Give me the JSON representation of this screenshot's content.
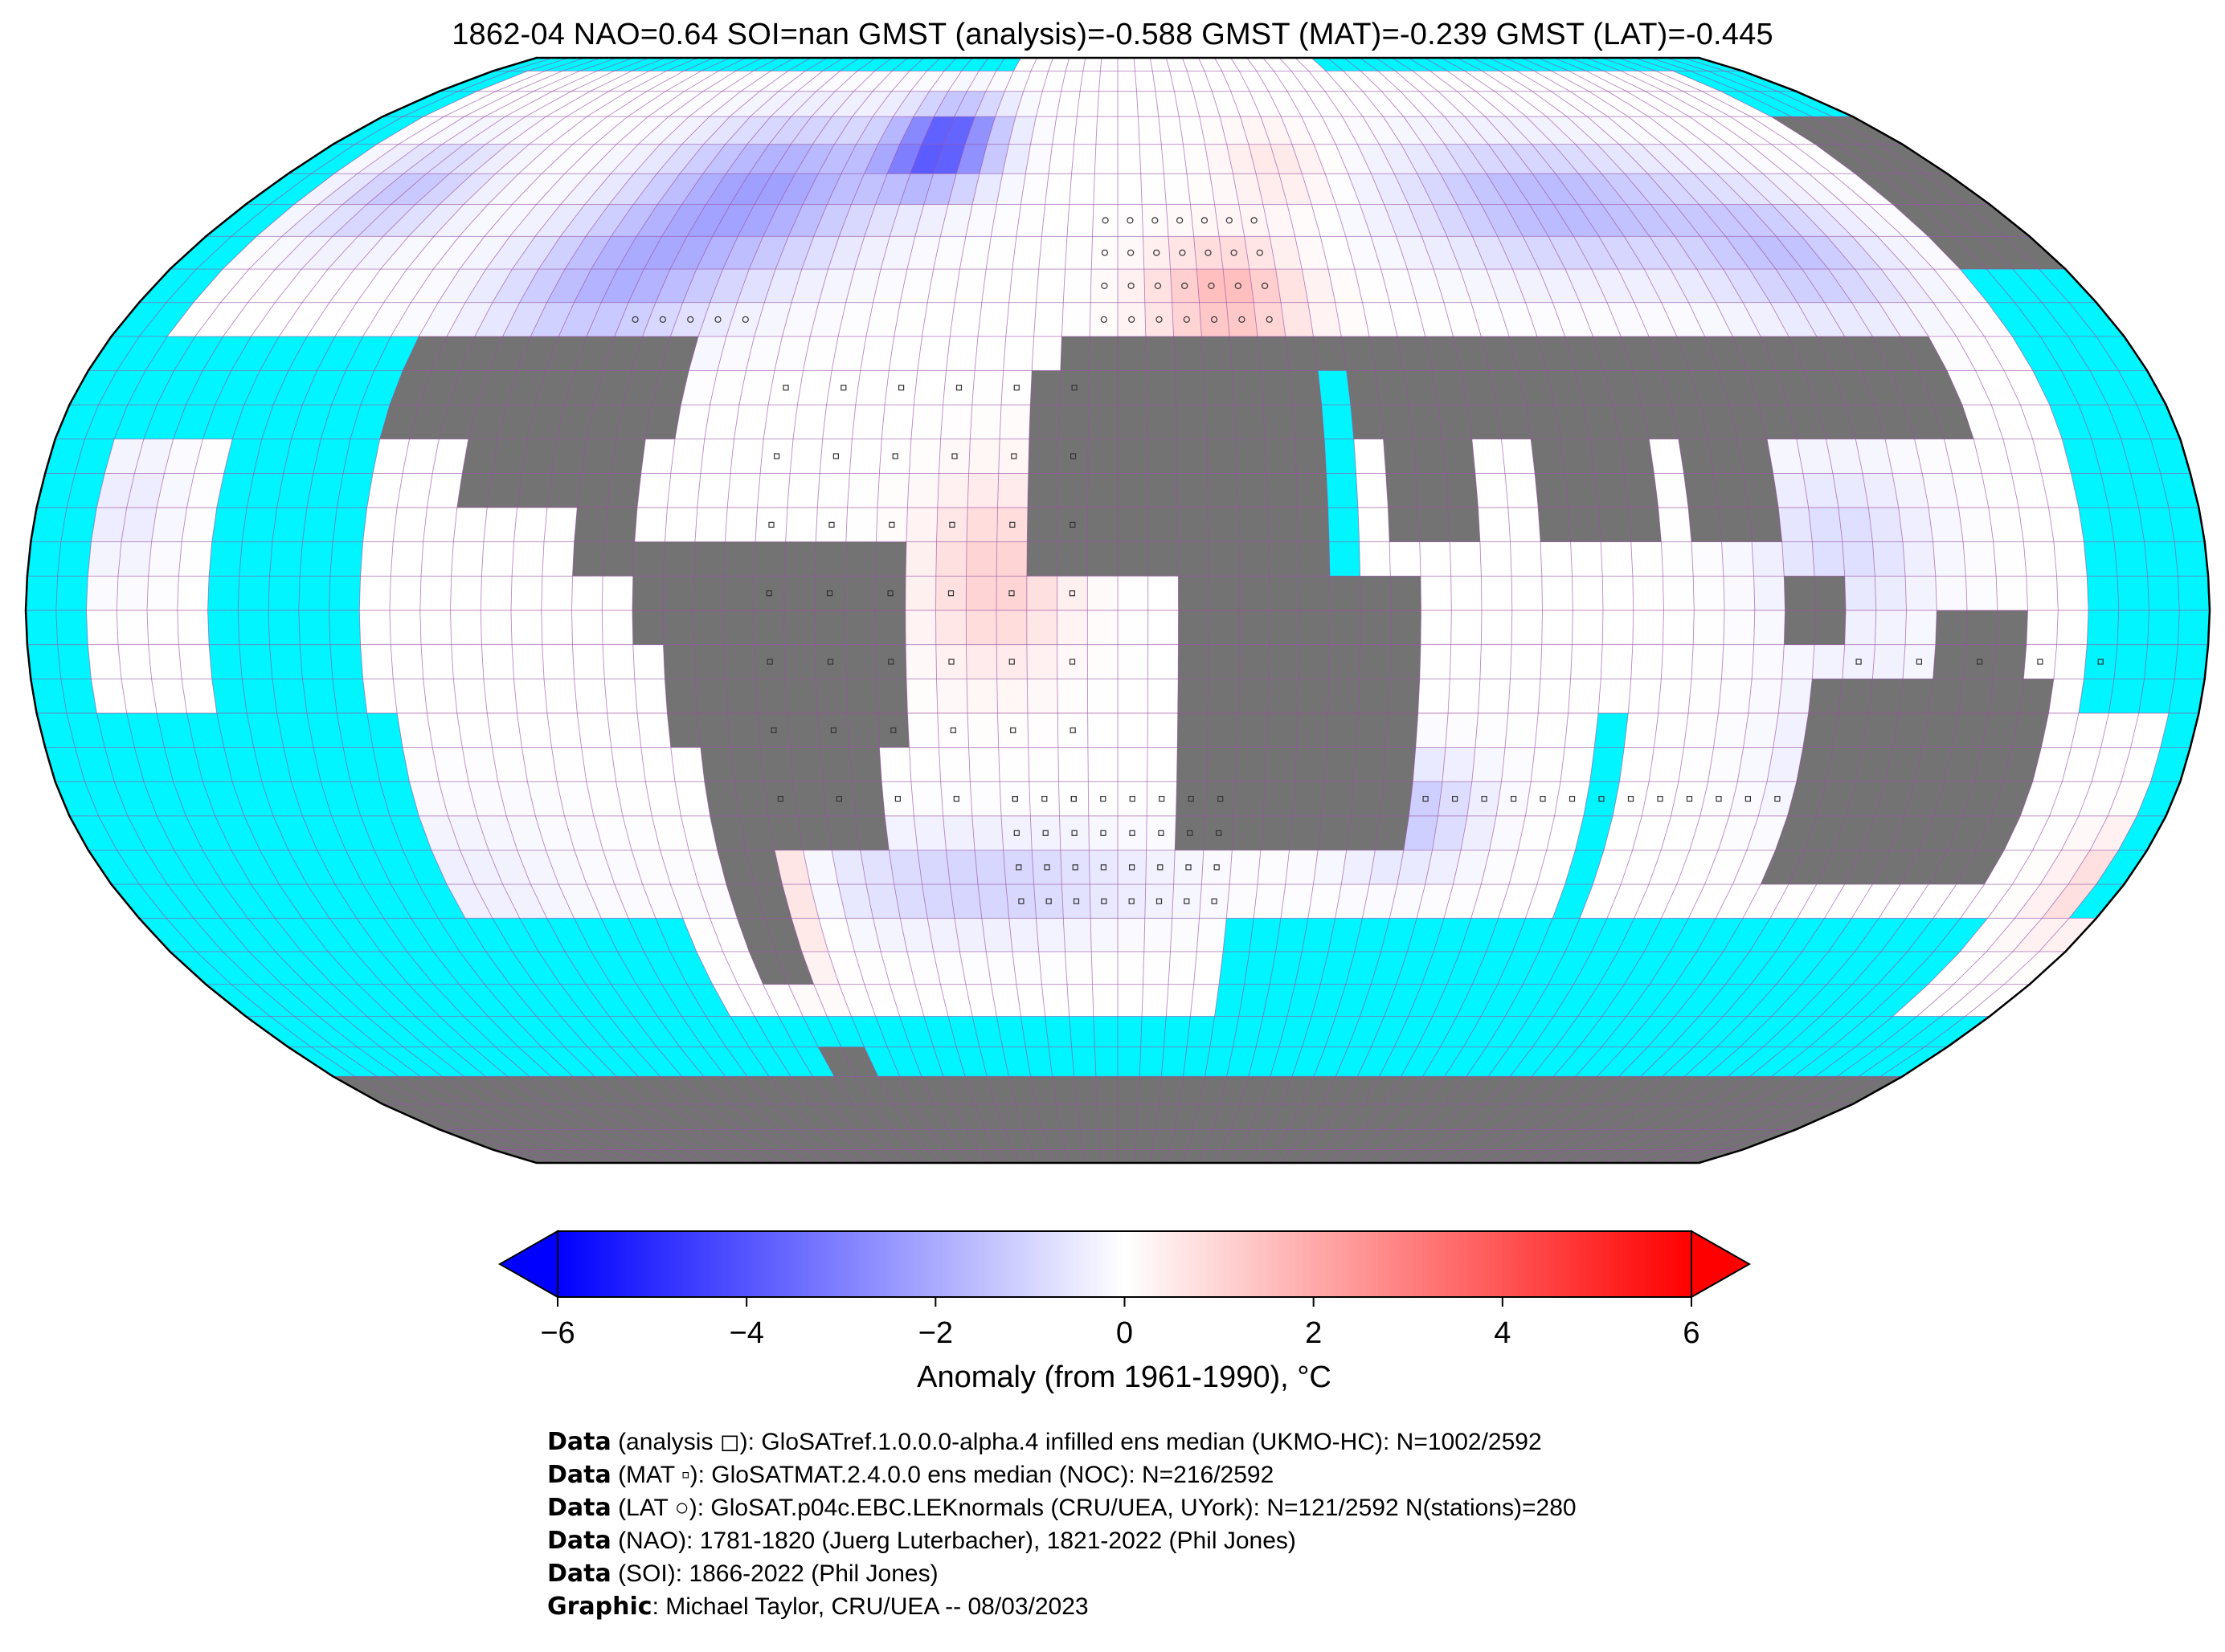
{
  "title": "1862-04 NAO=0.64 SOI=nan GMST (analysis)=-0.588 GMST (MAT)=-0.239 GMST (LAT)=-0.445",
  "colors": {
    "ocean_no_data": "#00f5ff",
    "land_no_data": "#737373",
    "grid_lines": "#a24aa2",
    "cmap_min": "#0000ff",
    "cmap_mid": "#ffffff",
    "cmap_max": "#ff0000"
  },
  "map": {
    "projection": "Robinson",
    "grid_resolution_deg": 5,
    "features": {
      "greenland": "strong cold anomaly (about -4 to -5)",
      "europe_mediterranean": "warm anomaly (about +1 to +2)",
      "north_america": "cold anomaly (about -1 to -2)",
      "siberia": "cold anomaly (about -2)",
      "south_atlantic_subtropics": "cold anomaly (about -1)",
      "tropical_atlantic_band": "warm anomaly (about +1)",
      "argentina_coast": "warm anomaly (about +1)",
      "new_zealand": "warm anomaly (about +1)"
    }
  },
  "colorbar": {
    "label": "Anomaly (from 1961-1990), °C",
    "ticks": [
      "−6",
      "−4",
      "−2",
      "0",
      "2",
      "4",
      "6"
    ],
    "vmin": -6,
    "vmax": 6,
    "extend": "both"
  },
  "credits": [
    {
      "bold": "Data",
      "text": " (analysis ◻): GloSATref.1.0.0.0-alpha.4 infilled ens median (UKMO-HC): N=1002/2592"
    },
    {
      "bold": "Data",
      "text": " (MAT ▫): GloSATMAT.2.4.0.0 ens median (NOC): N=216/2592"
    },
    {
      "bold": "Data",
      "text": " (LAT ○): GloSAT.p04c.EBC.LEKnormals (CRU/UEA, UYork): N=121/2592 N(stations)=280"
    },
    {
      "bold": "Data",
      "text": " (NAO): 1781-1820 (Juerg Luterbacher), 1821-2022 (Phil Jones)"
    },
    {
      "bold": "Data",
      "text": " (SOI): 1866-2022 (Phil Jones)"
    },
    {
      "bold": "Graphic",
      "text": ": Michael Taylor, CRU/UEA -- 08/03/2023"
    }
  ]
}
